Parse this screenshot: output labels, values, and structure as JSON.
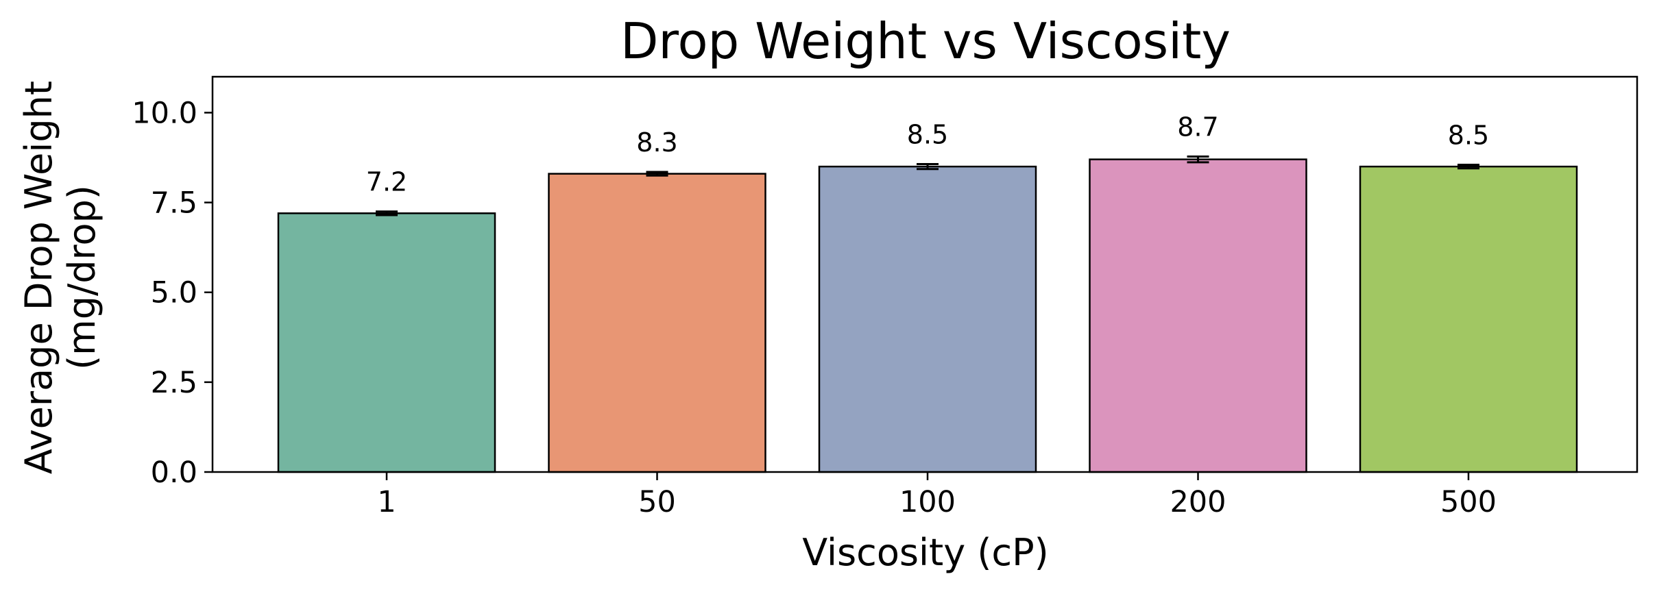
{
  "chart_data": {
    "type": "bar",
    "title": "Drop Weight vs Viscosity",
    "xlabel": "Viscosity (cP)",
    "ylabel_lines": [
      "Average Drop Weight",
      "(mg/drop)"
    ],
    "categories": [
      "1",
      "50",
      "100",
      "200",
      "500"
    ],
    "values": [
      7.2,
      8.3,
      8.5,
      8.7,
      8.5
    ],
    "value_labels": [
      "7.2",
      "8.3",
      "8.5",
      "8.7",
      "8.5"
    ],
    "errors": [
      0.05,
      0.05,
      0.07,
      0.08,
      0.05
    ],
    "colors": [
      "#74b5a0",
      "#e89674",
      "#94a3c1",
      "#db94bd",
      "#a1c763"
    ],
    "ylim": [
      0,
      11
    ],
    "yticks": [
      0,
      2.5,
      5,
      7.5,
      10
    ],
    "ytick_labels": [
      "0.0",
      "2.5",
      "5.0",
      "7.5",
      "10.0"
    ],
    "grid": false,
    "legend": null
  }
}
